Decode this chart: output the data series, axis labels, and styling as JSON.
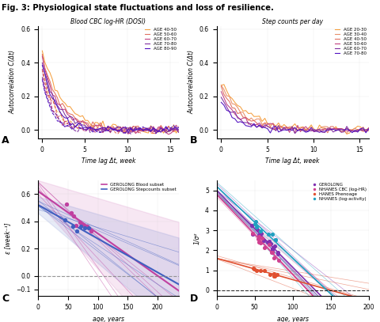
{
  "title": "Fig. 3: Physiological state fluctuations and loss of resilience.",
  "panel_A_title": "Blood CBC log-HR (DOSI)",
  "panel_B_title": "Step counts per day",
  "panel_A_legend": [
    "AGE 40-50",
    "AGE 50-60",
    "AGE 60-70",
    "AGE 70-80",
    "AGE 80-90"
  ],
  "panel_B_legend": [
    "AGE 20-30",
    "AGE 30-40",
    "AGE 40-50",
    "AGE 50-60",
    "AGE 60-70",
    "AGE 70-80"
  ],
  "age_colors_A": [
    "#f5a040",
    "#e07060",
    "#c04080",
    "#8030a0",
    "#5010c0"
  ],
  "age_colors_B": [
    "#f5a040",
    "#e8906a",
    "#e07060",
    "#c04080",
    "#8030a0",
    "#5010c0"
  ],
  "panel_C_legend": [
    "GEROLONG Blood subset",
    "GEROLONG Stepcounts subset"
  ],
  "panel_C_colors": [
    "#c040a0",
    "#4060c0"
  ],
  "panel_D_legend": [
    "GEROLONG",
    "NHANES CBC (log-HR)",
    "HANES Phenoage",
    "NHANES (log-activity)"
  ],
  "panel_D_colors": [
    "#8030b0",
    "#d04090",
    "#e05030",
    "#20a0c0"
  ],
  "xlabel_AC": "Time lag Δt, week",
  "ylabel_AC": "Autocorrelation C(Δt)",
  "xlabel_C": "age, years",
  "ylabel_C": "ε [week⁻¹]",
  "xlabel_D": "age, years",
  "ylabel_D": "1/σ²"
}
